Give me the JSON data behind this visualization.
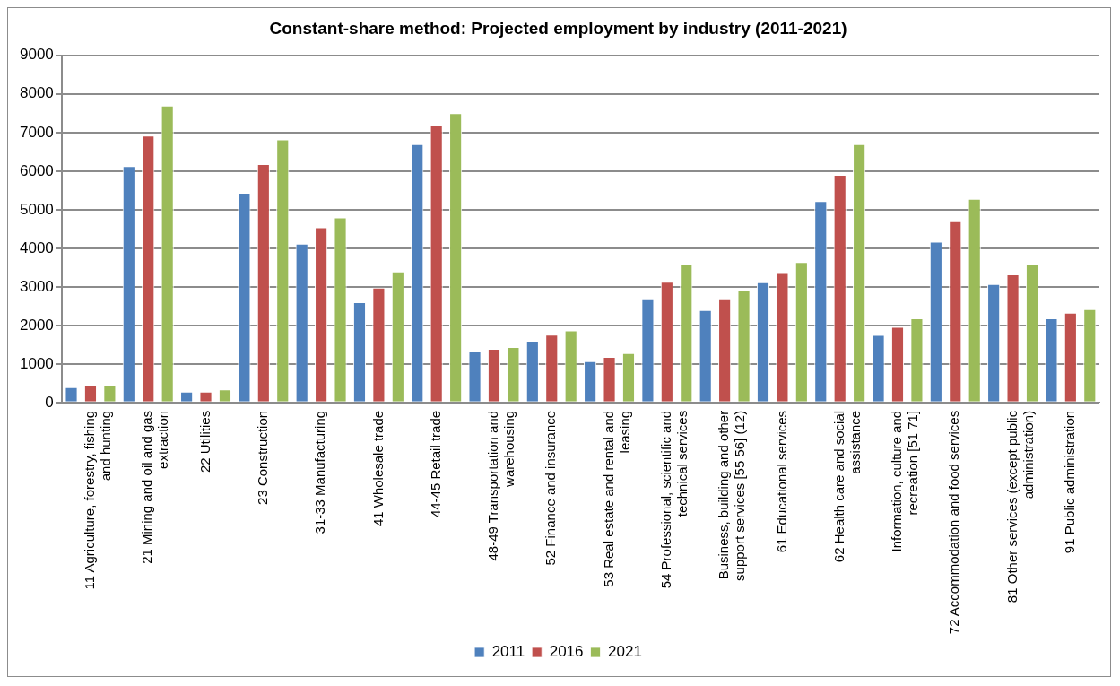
{
  "chart_data": {
    "type": "bar",
    "title": "Constant-share method: Projected employment by industry (2011-2021)",
    "categories": [
      "11 Agriculture, forestry, fishing and hunting",
      "21 Mining and oil and gas extraction",
      "22 Utilities",
      "23 Construction",
      "31-33 Manufacturing",
      "41 Wholesale trade",
      "44-45 Retail trade",
      "48-49 Transportation and warehousing",
      "52 Finance and insurance",
      "53 Real estate and rental and leasing",
      "54 Professional, scientific and technical services",
      "Business, building and other support services [55 56] (12)",
      "61 Educational services",
      "62 Health care and social assistance",
      "Information, culture and recreation [51 71]",
      "72 Accommodation and food services",
      "81 Other services (except public administration)",
      "91 Public administration"
    ],
    "series": [
      {
        "name": "2011",
        "color": "#4f81bd",
        "values": [
          400,
          6130,
          280,
          5440,
          4120,
          2600,
          6700,
          1330,
          1600,
          1070,
          2700,
          2400,
          3120,
          5220,
          1750,
          4170,
          3070,
          2180
        ]
      },
      {
        "name": "2016",
        "color": "#c0504d",
        "values": [
          450,
          6920,
          280,
          6180,
          4540,
          2980,
          7180,
          1390,
          1760,
          1180,
          3130,
          2700,
          3380,
          5900,
          1960,
          4700,
          3320,
          2330
        ]
      },
      {
        "name": "2021",
        "color": "#9bbb59",
        "values": [
          450,
          7700,
          340,
          6820,
          4800,
          3400,
          7500,
          1440,
          1870,
          1280,
          3600,
          2920,
          3640,
          6700,
          2180,
          5280,
          3600,
          2420
        ]
      }
    ],
    "ylim": [
      0,
      9000
    ],
    "yticks": [
      0,
      1000,
      2000,
      3000,
      4000,
      5000,
      6000,
      7000,
      8000,
      9000
    ],
    "grid": "y",
    "legend": "bottom"
  }
}
